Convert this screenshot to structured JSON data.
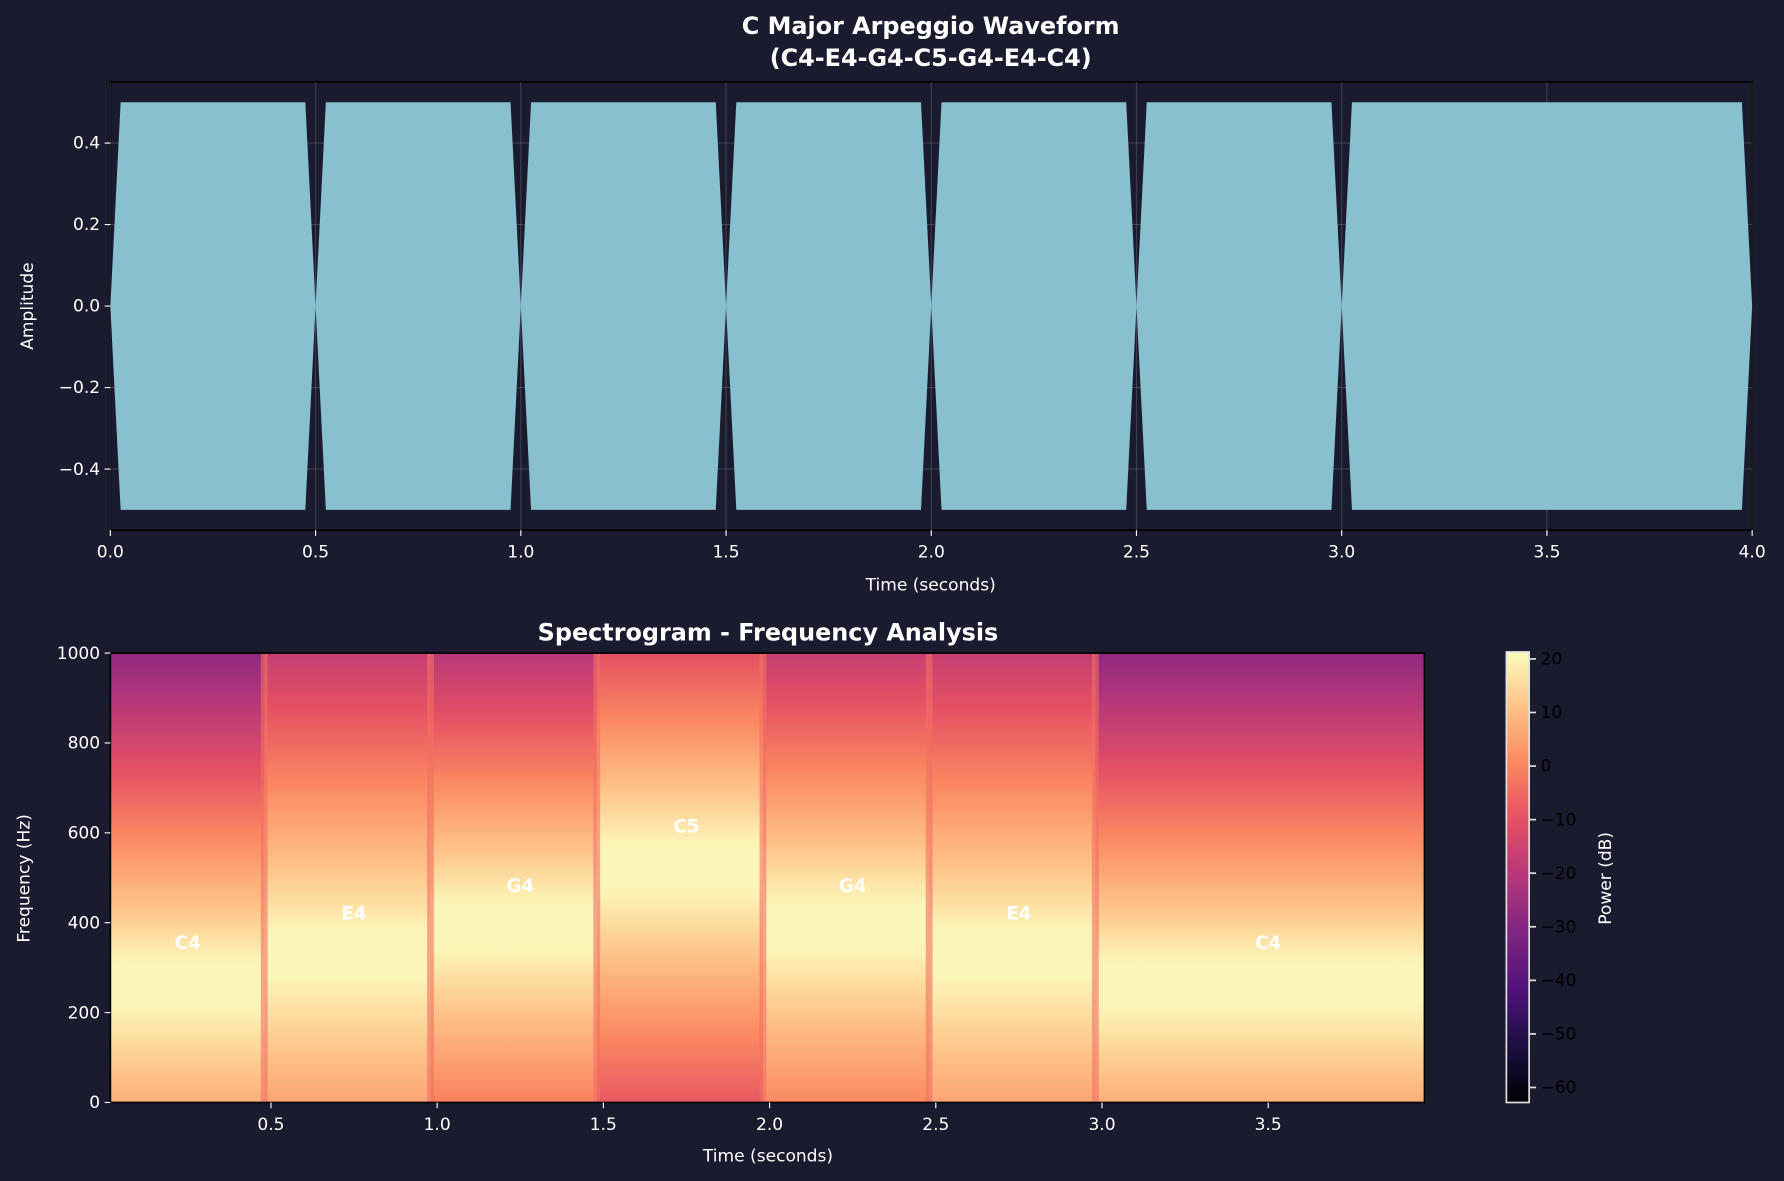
{
  "chart_data": [
    {
      "type": "line",
      "title_line1": "C Major Arpeggio Waveform",
      "title_line2": "(C4-E4-G4-C5-G4-E4-C4)",
      "xlabel": "Time (seconds)",
      "ylabel": "Amplitude",
      "xlim": [
        0,
        4
      ],
      "ylim": [
        -0.55,
        0.55
      ],
      "grid": true,
      "xticks": [
        "0.0",
        "0.5",
        "1.0",
        "1.5",
        "2.0",
        "2.5",
        "3.0",
        "3.5",
        "4.0"
      ],
      "xtick_values": [
        0,
        0.5,
        1,
        1.5,
        2,
        2.5,
        3,
        3.5,
        4
      ],
      "yticks": [
        "0.4",
        "0.2",
        "0.0",
        "−0.2",
        "−0.4"
      ],
      "ytick_values": [
        0.4,
        0.2,
        0,
        -0.2,
        -0.4
      ],
      "color": "#89c0cf",
      "amplitude": 0.5,
      "fade_seconds": 0.025,
      "notes": [
        {
          "note": "C4",
          "start": 0.0,
          "end": 0.5
        },
        {
          "note": "E4",
          "start": 0.5,
          "end": 1.0
        },
        {
          "note": "G4",
          "start": 1.0,
          "end": 1.5
        },
        {
          "note": "C5",
          "start": 1.5,
          "end": 2.0
        },
        {
          "note": "G4",
          "start": 2.0,
          "end": 2.5
        },
        {
          "note": "E4",
          "start": 2.5,
          "end": 3.0
        },
        {
          "note": "C4",
          "start": 3.0,
          "end": 4.0
        }
      ]
    },
    {
      "type": "heatmap",
      "title": "Spectrogram - Frequency Analysis",
      "xlabel": "Time (seconds)",
      "ylabel": "Frequency (Hz)",
      "xlim": [
        0.017,
        3.97
      ],
      "ylim": [
        0,
        1000
      ],
      "xticks": [
        "0.5",
        "1.0",
        "1.5",
        "2.0",
        "2.5",
        "3.0",
        "3.5"
      ],
      "xtick_values": [
        0.5,
        1,
        1.5,
        2,
        2.5,
        3,
        3.5
      ],
      "yticks": [
        "0",
        "200",
        "400",
        "600",
        "800",
        "1000"
      ],
      "ytick_values": [
        0,
        200,
        400,
        600,
        800,
        1000
      ],
      "colormap": "magma",
      "colorbar": {
        "label": "Power (dB)",
        "range": [
          -62.8,
          21.3
        ],
        "ticks": [
          "20",
          "10",
          "0",
          "−10",
          "−20",
          "−30",
          "−40",
          "−50",
          "−60"
        ],
        "tick_values": [
          20,
          10,
          0,
          -10,
          -20,
          -30,
          -40,
          -50,
          -60
        ]
      },
      "segments": [
        {
          "note": "C4",
          "start": 0.0,
          "end": 0.48,
          "freq": 261.6,
          "peak_db": 20,
          "top_db": -28
        },
        {
          "note": "E4",
          "start": 0.48,
          "end": 0.98,
          "freq": 329.6,
          "peak_db": 20,
          "top_db": -17
        },
        {
          "note": "G4",
          "start": 0.98,
          "end": 1.48,
          "freq": 392.0,
          "peak_db": 20,
          "top_db": -20
        },
        {
          "note": "C5",
          "start": 1.48,
          "end": 1.98,
          "freq": 523.3,
          "peak_db": 20,
          "top_db": -10
        },
        {
          "note": "G4",
          "start": 1.98,
          "end": 2.48,
          "freq": 392.0,
          "peak_db": 20,
          "top_db": -17
        },
        {
          "note": "E4",
          "start": 2.48,
          "end": 2.98,
          "freq": 329.6,
          "peak_db": 20,
          "top_db": -17
        },
        {
          "note": "C4",
          "start": 2.98,
          "end": 4.0,
          "freq": 261.6,
          "peak_db": 20,
          "top_db": -28
        }
      ],
      "annotations": [
        {
          "text": "C4",
          "time": 0.25,
          "freq": 357
        },
        {
          "text": "E4",
          "time": 0.75,
          "freq": 422
        },
        {
          "text": "G4",
          "time": 1.25,
          "freq": 484
        },
        {
          "text": "C5",
          "time": 1.75,
          "freq": 616
        },
        {
          "text": "G4",
          "time": 2.25,
          "freq": 484
        },
        {
          "text": "E4",
          "time": 2.75,
          "freq": 422
        },
        {
          "text": "C4",
          "time": 3.5,
          "freq": 357
        }
      ]
    }
  ]
}
